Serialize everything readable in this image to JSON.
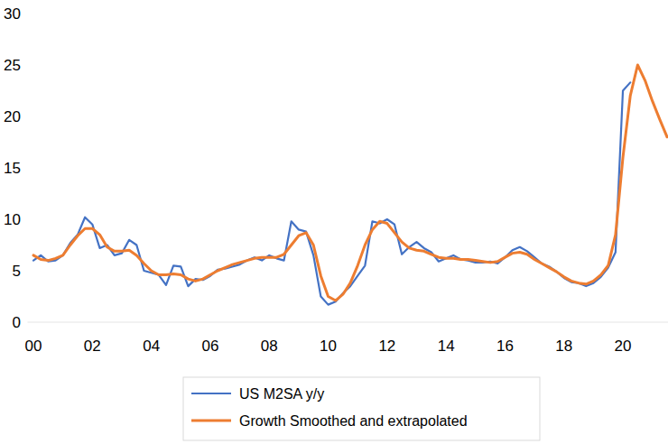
{
  "chart_data": {
    "type": "line",
    "x": [
      2000.0,
      2000.25,
      2000.5,
      2000.75,
      2001.0,
      2001.25,
      2001.5,
      2001.75,
      2002.0,
      2002.25,
      2002.5,
      2002.75,
      2003.0,
      2003.25,
      2003.5,
      2003.75,
      2004.0,
      2004.25,
      2004.5,
      2004.75,
      2005.0,
      2005.25,
      2005.5,
      2005.75,
      2006.0,
      2006.25,
      2006.5,
      2006.75,
      2007.0,
      2007.25,
      2007.5,
      2007.75,
      2008.0,
      2008.25,
      2008.5,
      2008.75,
      2009.0,
      2009.25,
      2009.5,
      2009.75,
      2010.0,
      2010.25,
      2010.5,
      2010.75,
      2011.0,
      2011.25,
      2011.5,
      2011.75,
      2012.0,
      2012.25,
      2012.5,
      2012.75,
      2013.0,
      2013.25,
      2013.5,
      2013.75,
      2014.0,
      2014.25,
      2014.5,
      2014.75,
      2015.0,
      2015.25,
      2015.5,
      2015.75,
      2016.0,
      2016.25,
      2016.5,
      2016.75,
      2017.0,
      2017.25,
      2017.5,
      2017.75,
      2018.0,
      2018.25,
      2018.5,
      2018.75,
      2019.0,
      2019.25,
      2019.5,
      2019.75,
      2020.0,
      2020.25,
      2020.5,
      2020.75,
      2021.0,
      2021.25,
      2021.5
    ],
    "series": [
      {
        "name": "US M2SA y/y",
        "color": "#4472c4",
        "values": [
          6.0,
          6.5,
          5.9,
          6.0,
          6.5,
          7.7,
          8.5,
          10.2,
          9.5,
          7.2,
          7.5,
          6.5,
          6.7,
          8.0,
          7.5,
          5.0,
          4.8,
          4.6,
          3.6,
          5.5,
          5.4,
          3.5,
          4.2,
          4.1,
          4.5,
          5.1,
          5.2,
          5.4,
          5.6,
          6.0,
          6.3,
          6.0,
          6.5,
          6.2,
          6.0,
          9.8,
          9.0,
          8.8,
          6.5,
          2.5,
          1.7,
          2.0,
          2.8,
          3.5,
          4.5,
          5.5,
          9.8,
          9.6,
          10.0,
          9.5,
          6.6,
          7.3,
          7.8,
          7.2,
          6.8,
          5.9,
          6.2,
          6.5,
          6.1,
          6.0,
          5.8,
          5.8,
          5.9,
          5.7,
          6.3,
          7.0,
          7.3,
          6.9,
          6.3,
          5.7,
          5.4,
          4.9,
          4.3,
          3.9,
          3.8,
          3.5,
          3.8,
          4.4,
          5.3,
          6.8,
          22.5,
          23.3,
          null,
          null,
          null,
          null,
          null
        ]
      },
      {
        "name": "Growth Smoothed and extrapolated",
        "color": "#ed7d31",
        "values": [
          6.5,
          6.1,
          6.0,
          6.2,
          6.5,
          7.5,
          8.4,
          9.1,
          9.1,
          8.5,
          7.3,
          6.9,
          6.9,
          7.0,
          6.5,
          5.7,
          5.0,
          4.6,
          4.6,
          4.7,
          4.6,
          4.2,
          4.0,
          4.2,
          4.6,
          5.0,
          5.3,
          5.6,
          5.8,
          6.0,
          6.2,
          6.3,
          6.3,
          6.3,
          6.6,
          7.5,
          8.4,
          8.7,
          7.5,
          4.5,
          2.5,
          2.1,
          2.7,
          3.8,
          5.5,
          7.5,
          9.0,
          9.8,
          9.6,
          8.7,
          7.8,
          7.2,
          7.0,
          6.9,
          6.6,
          6.3,
          6.2,
          6.2,
          6.1,
          6.1,
          6.0,
          5.9,
          5.8,
          5.9,
          6.3,
          6.7,
          6.8,
          6.6,
          6.1,
          5.7,
          5.3,
          4.9,
          4.4,
          4.0,
          3.8,
          3.7,
          4.0,
          4.6,
          5.5,
          8.5,
          16.0,
          22.0,
          25.0,
          23.5,
          21.5,
          19.7,
          18.0
        ]
      }
    ],
    "xlim": [
      1999.8,
      2021.53
    ],
    "xticks": [
      {
        "value": 2000,
        "label": "00"
      },
      {
        "value": 2002,
        "label": "02"
      },
      {
        "value": 2004,
        "label": "04"
      },
      {
        "value": 2006,
        "label": "06"
      },
      {
        "value": 2008,
        "label": "08"
      },
      {
        "value": 2010,
        "label": "10"
      },
      {
        "value": 2012,
        "label": "12"
      },
      {
        "value": 2014,
        "label": "14"
      },
      {
        "value": 2016,
        "label": "16"
      },
      {
        "value": 2018,
        "label": "18"
      },
      {
        "value": 2020,
        "label": "20"
      }
    ],
    "ylim": [
      0,
      30
    ],
    "yticks": [
      0,
      5,
      10,
      15,
      20,
      25,
      30
    ],
    "grid": false,
    "legend": "bottom"
  }
}
